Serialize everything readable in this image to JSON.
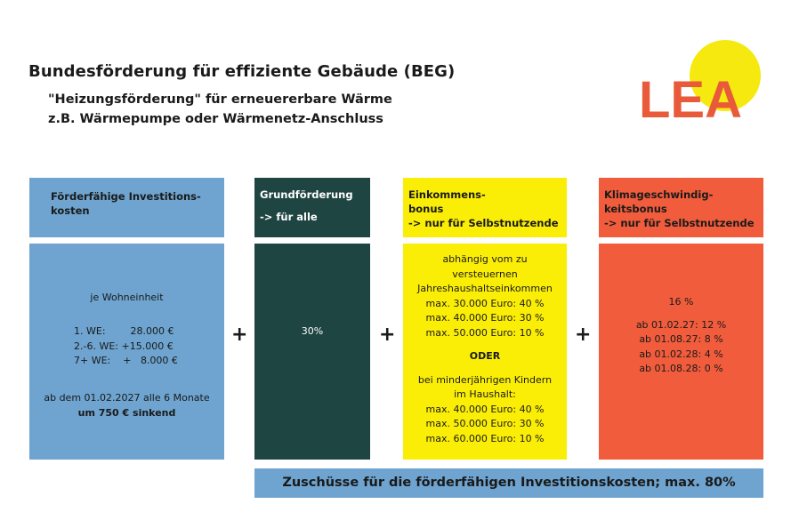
{
  "header": {
    "title": "Bundesförderung für effiziente Gebäude (BEG)",
    "subtitle_line1": "\"Heizungsförderung\" für erneuererbare Wärme",
    "subtitle_line2": "z.B. Wärmepumpe oder Wärmenetz-Anschluss"
  },
  "logo": {
    "text": "LEA",
    "text_color": "#e85a3a",
    "sun_color": "#f5e90f"
  },
  "colors": {
    "blue": "#6ea4cf",
    "dark_green": "#1f4542",
    "yellow": "#fbee06",
    "red": "#f05c3c"
  },
  "columns": [
    {
      "header": [
        "Förderfähige Investitions-",
        "kosten"
      ],
      "body": {
        "intro": "je Wohneinheit",
        "rows": [
          "1. WE:        28.000 €",
          "2.-6. WE: +15.000 €",
          "7+ WE:    +   8.000 €"
        ],
        "note_line1": "ab dem 01.02.2027 alle 6 Monate",
        "note_line2": "um 750 € sinkend"
      }
    },
    {
      "header": [
        "Grundförderung",
        "-> für alle"
      ],
      "body": {
        "value": "30%"
      }
    },
    {
      "header": [
        "Einkommens-",
        "bonus",
        "-> nur für Selbstnutzende"
      ],
      "body": {
        "lines_a": [
          "abhängig vom zu",
          "versteuernen",
          "Jahreshaushaltseinkommen",
          "max. 30.000 Euro: 40 %",
          "max. 40.000 Euro: 30 %",
          "max. 50.000 Euro: 10 %"
        ],
        "oder": "ODER",
        "lines_b": [
          "bei minderjährigen Kindern",
          "im Haushalt:",
          "max. 40.000 Euro: 40 %",
          "max. 50.000 Euro: 30 %",
          "max. 60.000 Euro: 10 %"
        ]
      }
    },
    {
      "header": [
        "Klimageschwindig-",
        "keitsbonus",
        "-> nur für Selbstnutzende"
      ],
      "body": {
        "value": "16 %",
        "lines": [
          "ab 01.02.27: 12 %",
          "ab 01.08.27: 8 %",
          "ab 01.02.28: 4 %",
          "ab 01.08.28: 0 %"
        ]
      }
    }
  ],
  "operators": [
    "+",
    "+",
    "+"
  ],
  "footer": "Zuschüsse für die förderfähigen Investitionskosten; max. 80%"
}
